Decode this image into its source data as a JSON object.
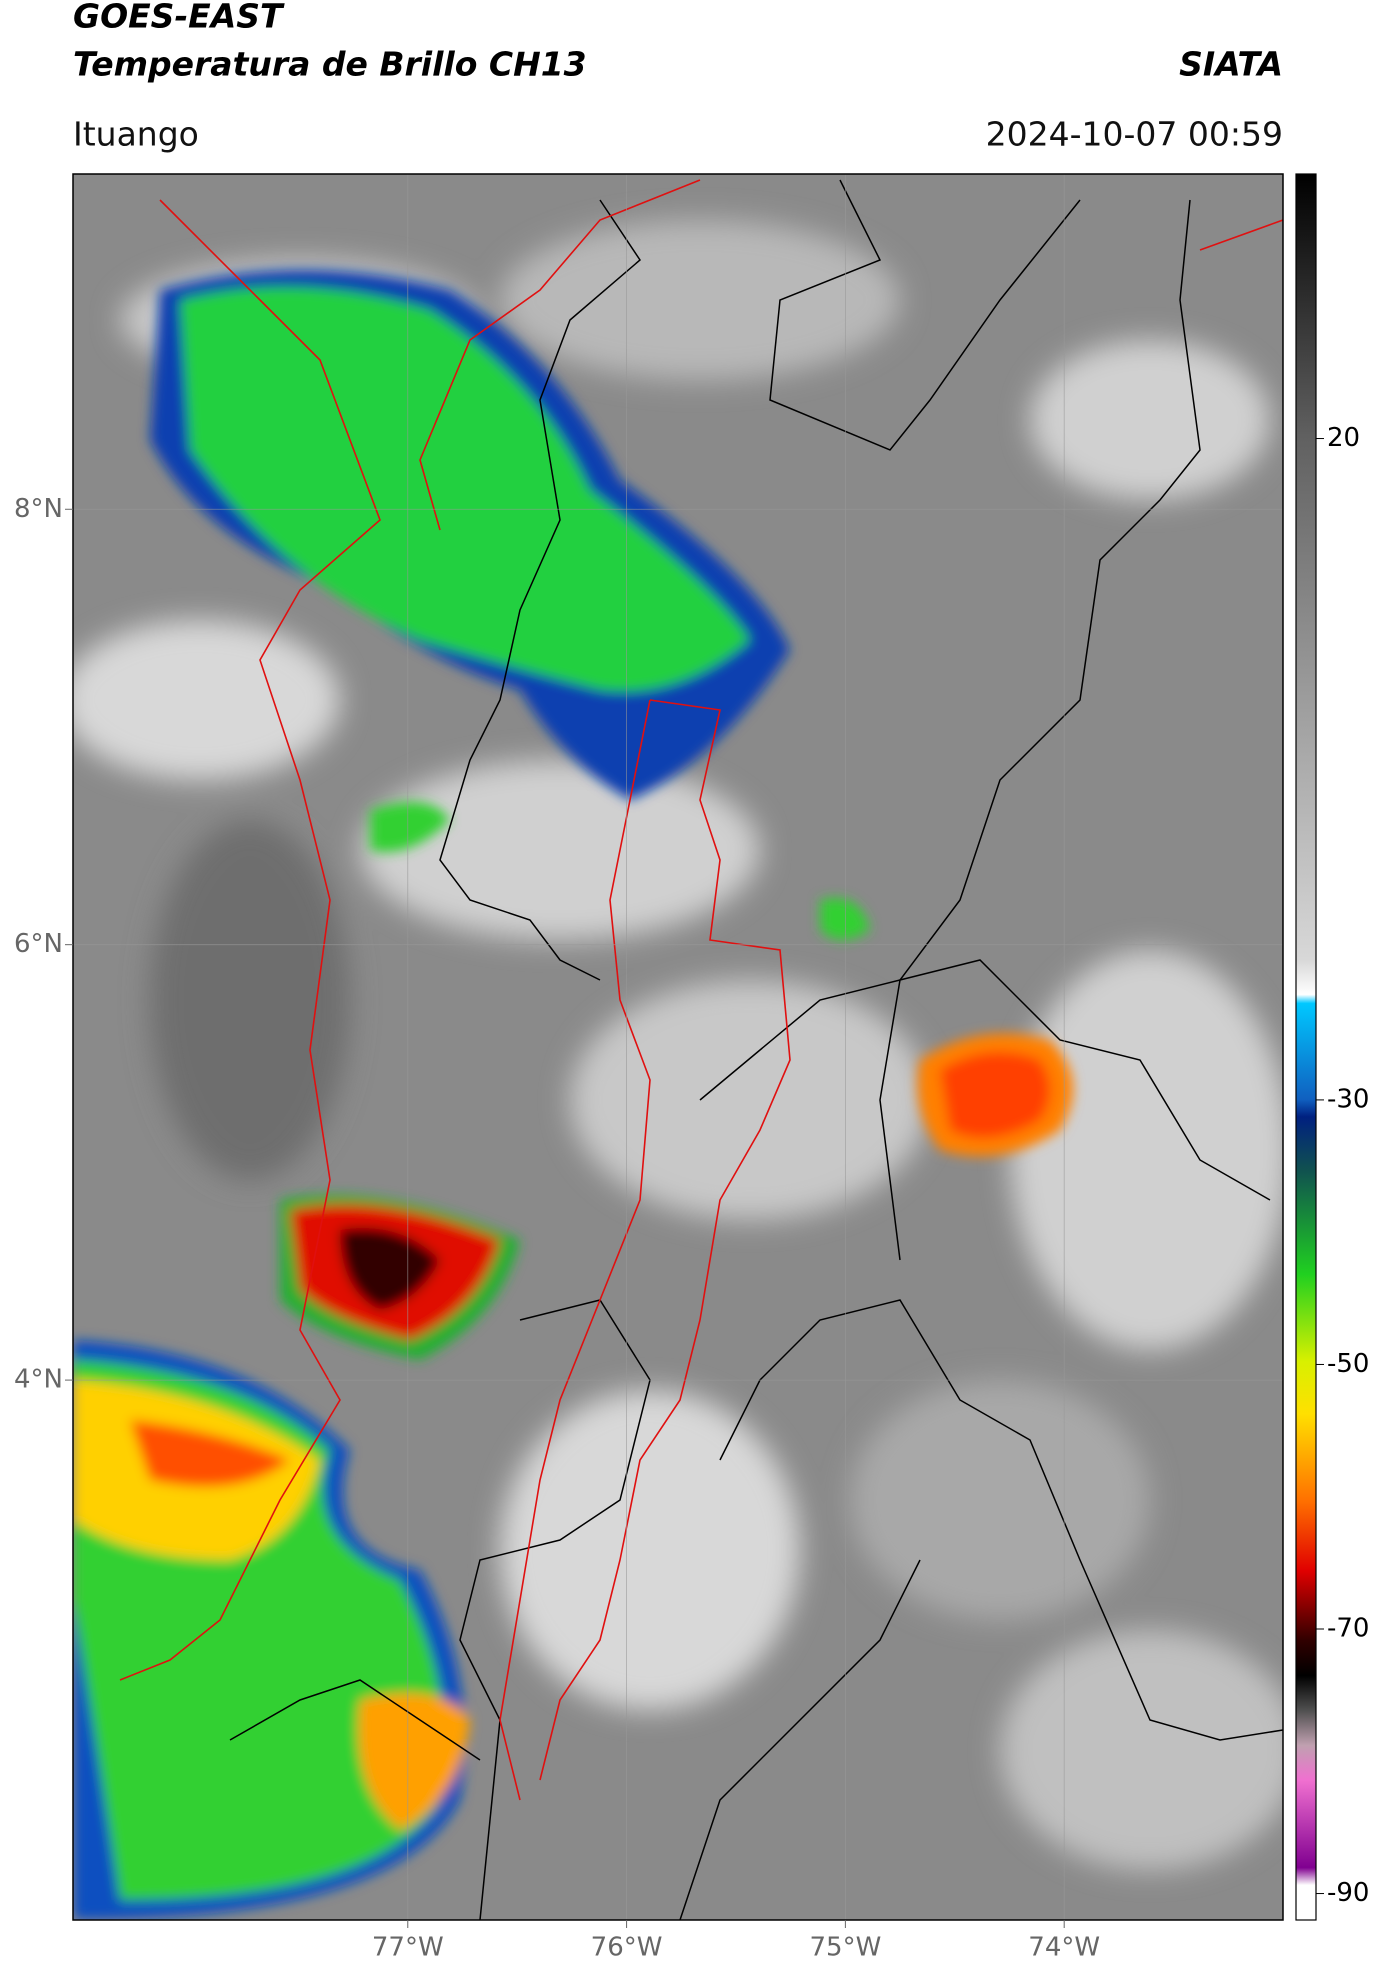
{
  "header": {
    "title": "GOES-EAST",
    "subtitle": "Temperatura de Brillo CH13",
    "brand": "SIATA",
    "location": "Ituango",
    "datetime": "2024-10-07 00:59"
  },
  "map": {
    "xlim": [
      -78.53,
      -73.0
    ],
    "ylim": [
      1.52,
      9.54
    ],
    "xticks": [
      {
        "value": -77,
        "label": "77°W"
      },
      {
        "value": -76,
        "label": "76°W"
      },
      {
        "value": -75,
        "label": "75°W"
      },
      {
        "value": -74,
        "label": "74°W"
      }
    ],
    "yticks": [
      {
        "value": 8,
        "label": "8°N"
      },
      {
        "value": 6,
        "label": "6°N"
      },
      {
        "value": 4,
        "label": "4°N"
      }
    ],
    "grid": true
  },
  "colorbar": {
    "lim": [
      -92,
      40
    ],
    "ticks": [
      20,
      -30,
      -50,
      -70,
      -90
    ]
  }
}
